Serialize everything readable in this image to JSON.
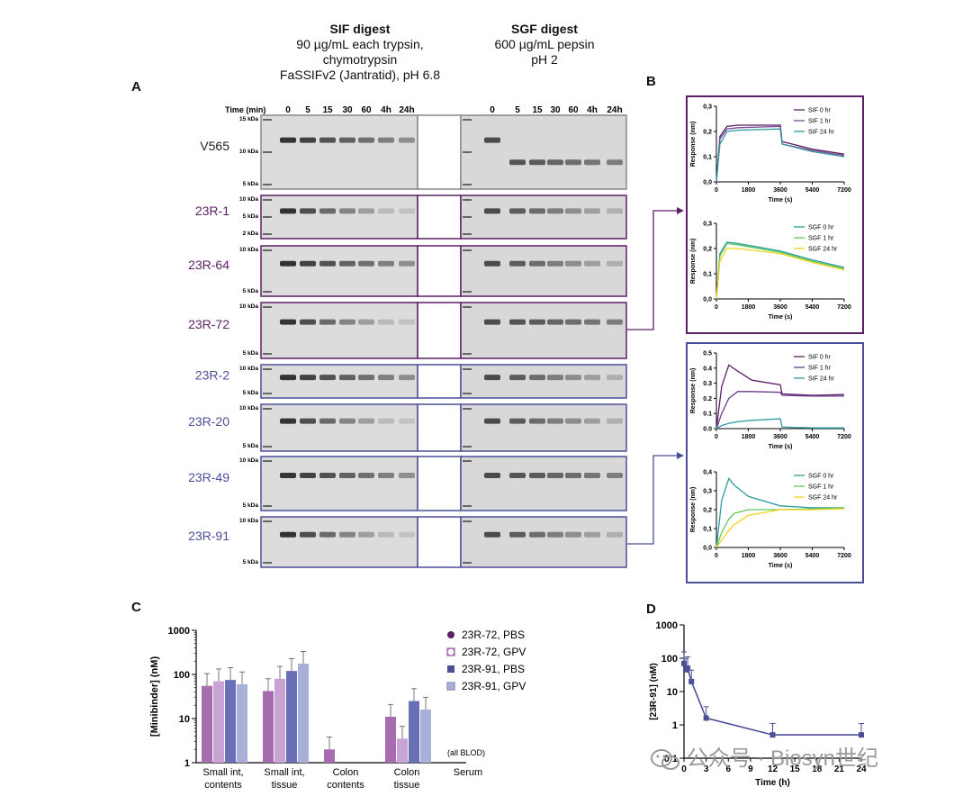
{
  "panel_labels": {
    "a": "A",
    "b": "B",
    "c": "C",
    "d": "D"
  },
  "header": {
    "sif_title": "SIF digest",
    "sif_lines": [
      "90 µg/mL each trypsin,",
      "chymotrypsin",
      "FaSSIFv2 (Jantratid), pH 6.8"
    ],
    "sgf_title": "SGF digest",
    "sgf_lines": [
      "600 µg/mL pepsin",
      "pH 2"
    ]
  },
  "gel": {
    "time_label": "Time (min)",
    "timepoints": [
      "0",
      "5",
      "15",
      "30",
      "60",
      "4h",
      "24h"
    ],
    "rows": [
      {
        "name": "V565",
        "color": "#222222",
        "markers": [
          "15 kDa",
          "10 kDa",
          "5 kDa"
        ]
      },
      {
        "name": "23R-1",
        "color": "#5c1f66",
        "markers": [
          "10 kDa",
          "5 kDa",
          "2 kDa"
        ]
      },
      {
        "name": "23R-64",
        "color": "#5c1f66",
        "markers": [
          "10 kDa",
          "5 kDa"
        ]
      },
      {
        "name": "23R-72",
        "color": "#5c1f66",
        "markers": [
          "10 kDa",
          "5 kDa"
        ]
      },
      {
        "name": "23R-2",
        "color": "#4c4f96",
        "markers": [
          "10 kDa",
          "5 kDa"
        ]
      },
      {
        "name": "23R-20",
        "color": "#4c4f96",
        "markers": [
          "10 kDa",
          "5 kDa"
        ]
      },
      {
        "name": "23R-49",
        "color": "#4c4f96",
        "markers": [
          "10 kDa",
          "5 kDa"
        ]
      },
      {
        "name": "23R-91",
        "color": "#4c4f96",
        "markers": [
          "10 kDa",
          "5 kDa"
        ]
      }
    ]
  },
  "colors": {
    "purple": "#5c1f66",
    "blue": "#4c4f96",
    "teal": "#2e9aa0",
    "green": "#5cc95c",
    "yellow": "#f2d31c",
    "lightpurple": "#c9a3d3",
    "lightblue": "#a8b0d8"
  },
  "chart_data": [
    {
      "id": "B-top-sif",
      "type": "line",
      "ylabel": "Response (nm)",
      "xlabel": "Time (s)",
      "xlim": [
        0,
        7200
      ],
      "ylim": [
        0,
        0.3
      ],
      "xticks": [
        "0",
        "1800",
        "3600",
        "5400",
        "7200"
      ],
      "yticks": [
        "0,0",
        "0,1",
        "0,2",
        "0,3"
      ],
      "series": [
        {
          "name": "SIF 0 hr",
          "x": [
            0,
            200,
            600,
            1200,
            3600,
            3700,
            5400,
            7200
          ],
          "y": [
            0,
            0.18,
            0.22,
            0.225,
            0.225,
            0.16,
            0.13,
            0.11
          ]
        },
        {
          "name": "SIF 1 hr",
          "x": [
            0,
            200,
            600,
            1200,
            3600,
            3700,
            5400,
            7200
          ],
          "y": [
            0,
            0.17,
            0.21,
            0.215,
            0.22,
            0.15,
            0.125,
            0.105
          ]
        },
        {
          "name": "SIF 24 hr",
          "x": [
            0,
            200,
            600,
            1200,
            3600,
            3700,
            5400,
            7200
          ],
          "y": [
            0,
            0.15,
            0.2,
            0.205,
            0.21,
            0.15,
            0.12,
            0.1
          ]
        }
      ]
    },
    {
      "id": "B-top-sgf",
      "type": "line",
      "ylabel": "Response (nm)",
      "xlabel": "Time (s)",
      "xlim": [
        0,
        7200
      ],
      "ylim": [
        0,
        0.3
      ],
      "xticks": [
        "0",
        "1800",
        "3600",
        "5400",
        "7200"
      ],
      "yticks": [
        "0,0",
        "0,1",
        "0,2",
        "0,3"
      ],
      "series": [
        {
          "name": "SGF 0 hr",
          "x": [
            0,
            200,
            600,
            1200,
            3600,
            5400,
            7200
          ],
          "y": [
            0,
            0.18,
            0.225,
            0.22,
            0.19,
            0.155,
            0.125
          ]
        },
        {
          "name": "SGF 1 hr",
          "x": [
            0,
            200,
            600,
            1200,
            3600,
            5400,
            7200
          ],
          "y": [
            0,
            0.17,
            0.22,
            0.215,
            0.185,
            0.15,
            0.12
          ]
        },
        {
          "name": "SGF 24 hr",
          "x": [
            0,
            200,
            600,
            1200,
            3600,
            5400,
            7200
          ],
          "y": [
            0,
            0.15,
            0.2,
            0.2,
            0.18,
            0.145,
            0.115
          ]
        }
      ]
    },
    {
      "id": "B-bot-sif",
      "type": "line",
      "ylabel": "Response (nm)",
      "xlabel": "Time (s)",
      "xlim": [
        0,
        7200
      ],
      "ylim": [
        0,
        0.5
      ],
      "xticks": [
        "0",
        "1800",
        "3600",
        "5400",
        "7200"
      ],
      "yticks": [
        "0.0",
        "0.1",
        "0.2",
        "0.3",
        "0.4",
        "0.5"
      ],
      "series": [
        {
          "name": "SIF 0 hr",
          "x": [
            0,
            300,
            700,
            1200,
            2000,
            3600,
            3700,
            5400,
            7200
          ],
          "y": [
            0,
            0.28,
            0.42,
            0.38,
            0.32,
            0.29,
            0.23,
            0.22,
            0.225
          ]
        },
        {
          "name": "SIF 1 hr",
          "x": [
            0,
            300,
            700,
            1200,
            2000,
            3600,
            3700,
            5400,
            7200
          ],
          "y": [
            0,
            0.1,
            0.2,
            0.245,
            0.245,
            0.24,
            0.22,
            0.215,
            0.215
          ]
        },
        {
          "name": "SIF 24 hr",
          "x": [
            0,
            300,
            700,
            1200,
            2000,
            3600,
            3700,
            5400,
            7200
          ],
          "y": [
            0,
            0.02,
            0.035,
            0.045,
            0.055,
            0.065,
            0.01,
            0.005,
            0.005
          ]
        }
      ]
    },
    {
      "id": "B-bot-sgf",
      "type": "line",
      "ylabel": "Response (nm)",
      "xlabel": "Time (s)",
      "xlim": [
        0,
        7200
      ],
      "ylim": [
        0,
        0.4
      ],
      "xticks": [
        "0",
        "1800",
        "3600",
        "5400",
        "7200"
      ],
      "yticks": [
        "0,0",
        "0,1",
        "0,2",
        "0,3",
        "0,4"
      ],
      "series": [
        {
          "name": "SGF 0 hr",
          "x": [
            0,
            300,
            700,
            1000,
            1800,
            3600,
            5400,
            7200
          ],
          "y": [
            0,
            0.25,
            0.365,
            0.33,
            0.27,
            0.22,
            0.21,
            0.21
          ]
        },
        {
          "name": "SGF 1 hr",
          "x": [
            0,
            300,
            700,
            1000,
            1800,
            3600,
            5400,
            7200
          ],
          "y": [
            0,
            0.08,
            0.15,
            0.18,
            0.2,
            0.2,
            0.205,
            0.21
          ]
        },
        {
          "name": "SGF 24 hr",
          "x": [
            0,
            300,
            700,
            1000,
            1800,
            3600,
            5400,
            7200
          ],
          "y": [
            0,
            0.04,
            0.09,
            0.12,
            0.17,
            0.2,
            0.2,
            0.205
          ]
        }
      ]
    },
    {
      "id": "C",
      "type": "bar",
      "ylabel": "[Minibinder] (nM)",
      "yscale": "log",
      "ylim": [
        1,
        1000
      ],
      "yticks": [
        "1",
        "10",
        "100",
        "1000"
      ],
      "categories": [
        "Small int, contents",
        "Small int, tissue",
        "Colon contents",
        "Colon tissue",
        "Serum"
      ],
      "annotation": "(all BLOD)",
      "series": [
        {
          "name": "23R-72, PBS",
          "values": [
            55,
            42,
            2,
            11,
            null
          ]
        },
        {
          "name": "23R-72, GPV",
          "values": [
            70,
            80,
            null,
            3.5,
            null
          ]
        },
        {
          "name": "23R-91, PBS",
          "values": [
            75,
            120,
            null,
            25,
            null
          ]
        },
        {
          "name": "23R-91, GPV",
          "values": [
            60,
            175,
            null,
            16,
            null
          ]
        }
      ]
    },
    {
      "id": "D",
      "type": "line",
      "ylabel": "[23R-91] (nM)",
      "xlabel": "Time (h)",
      "yscale": "log",
      "xlim": [
        0,
        24
      ],
      "ylim": [
        0.1,
        1000
      ],
      "xticks": [
        "0",
        "3",
        "6",
        "9",
        "12",
        "15",
        "18",
        "21",
        "24"
      ],
      "yticks": [
        "0.1",
        "1",
        "10",
        "100",
        "1000"
      ],
      "series": [
        {
          "name": "23R-91",
          "x": [
            0,
            0.25,
            0.5,
            1,
            3,
            12,
            24
          ],
          "y": [
            70,
            45,
            50,
            20,
            1.6,
            0.5,
            0.5
          ]
        }
      ]
    }
  ],
  "watermark": "公众号 · Biosyn世纪"
}
